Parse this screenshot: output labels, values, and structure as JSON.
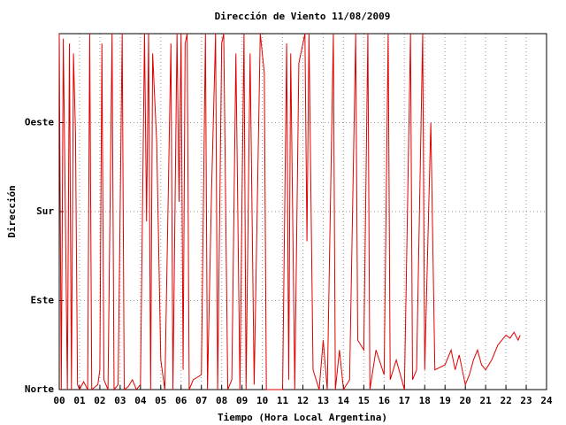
{
  "chart_data": {
    "type": "line",
    "title": "Dirección de Viento 11/08/2009",
    "x_label": "Tiempo (Hora Local Argentina)",
    "y_label": "Dirección",
    "x": [
      0.0,
      0.1,
      0.2,
      0.3,
      0.4,
      0.5,
      0.6,
      0.7,
      0.8,
      0.9,
      1.0,
      1.2,
      1.4,
      1.5,
      1.6,
      1.9,
      2.0,
      2.1,
      2.2,
      2.4,
      2.6,
      2.7,
      2.9,
      3.1,
      3.2,
      3.4,
      3.6,
      3.8,
      4.0,
      4.2,
      4.3,
      4.4,
      4.5,
      4.6,
      4.8,
      5.0,
      5.2,
      5.5,
      5.6,
      5.8,
      5.9,
      6.0,
      6.1,
      6.2,
      6.3,
      6.4,
      6.6,
      7.0,
      7.2,
      7.3,
      7.5,
      7.7,
      7.8,
      8.0,
      8.1,
      8.3,
      8.5,
      8.7,
      8.9,
      9.0,
      9.1,
      9.2,
      9.4,
      9.6,
      9.9,
      10.1,
      10.2,
      10.5,
      11.0,
      11.2,
      11.3,
      11.4,
      11.6,
      11.8,
      12.1,
      12.2,
      12.3,
      12.5,
      12.8,
      13.0,
      13.2,
      13.5,
      13.6,
      13.8,
      14.0,
      14.3,
      14.6,
      14.7,
      15.0,
      15.2,
      15.3,
      15.6,
      16.0,
      16.2,
      16.3,
      16.6,
      17.0,
      17.3,
      17.4,
      17.6,
      17.9,
      18.0,
      18.3,
      18.5,
      19.0,
      19.3,
      19.5,
      19.7,
      20.0,
      20.2,
      20.4,
      20.6,
      20.8,
      21.0,
      21.3,
      21.6,
      22.0,
      22.2,
      22.4,
      22.6,
      22.7
    ],
    "series": [
      {
        "name": "Dirección",
        "color": "#e00000",
        "values": [
          360,
          0,
          355,
          180,
          0,
          350,
          0,
          340,
          260,
          5,
          0,
          8,
          0,
          360,
          0,
          5,
          20,
          350,
          10,
          0,
          360,
          0,
          5,
          360,
          0,
          3,
          10,
          0,
          5,
          360,
          170,
          360,
          0,
          340,
          250,
          30,
          0,
          350,
          0,
          360,
          190,
          360,
          20,
          350,
          360,
          0,
          10,
          15,
          360,
          0,
          200,
          360,
          0,
          350,
          360,
          0,
          10,
          340,
          0,
          190,
          360,
          0,
          340,
          5,
          360,
          320,
          0,
          0,
          0,
          350,
          10,
          340,
          0,
          330,
          360,
          150,
          360,
          20,
          0,
          50,
          0,
          360,
          0,
          40,
          0,
          10,
          360,
          50,
          40,
          360,
          0,
          40,
          15,
          360,
          10,
          30,
          0,
          360,
          10,
          20,
          360,
          20,
          270,
          20,
          25,
          40,
          20,
          35,
          5,
          15,
          30,
          40,
          25,
          20,
          30,
          45,
          55,
          52,
          58,
          50,
          55
        ]
      }
    ],
    "xlim": [
      0,
      24
    ],
    "xticks": [
      {
        "value": 0,
        "label": "00"
      },
      {
        "value": 1,
        "label": "01"
      },
      {
        "value": 2,
        "label": "02"
      },
      {
        "value": 3,
        "label": "03"
      },
      {
        "value": 4,
        "label": "04"
      },
      {
        "value": 5,
        "label": "05"
      },
      {
        "value": 6,
        "label": "06"
      },
      {
        "value": 7,
        "label": "07"
      },
      {
        "value": 8,
        "label": "08"
      },
      {
        "value": 9,
        "label": "09"
      },
      10,
      11,
      12,
      13,
      14,
      15,
      16,
      17,
      18,
      19,
      20,
      21,
      22,
      23,
      24
    ],
    "ylim": [
      0,
      360
    ],
    "yticks": [
      {
        "value": 0,
        "label": "Norte"
      },
      {
        "value": 90,
        "label": "Este"
      },
      {
        "value": 180,
        "label": "Sur"
      },
      {
        "value": 270,
        "label": "Oeste"
      }
    ],
    "grid": true
  }
}
